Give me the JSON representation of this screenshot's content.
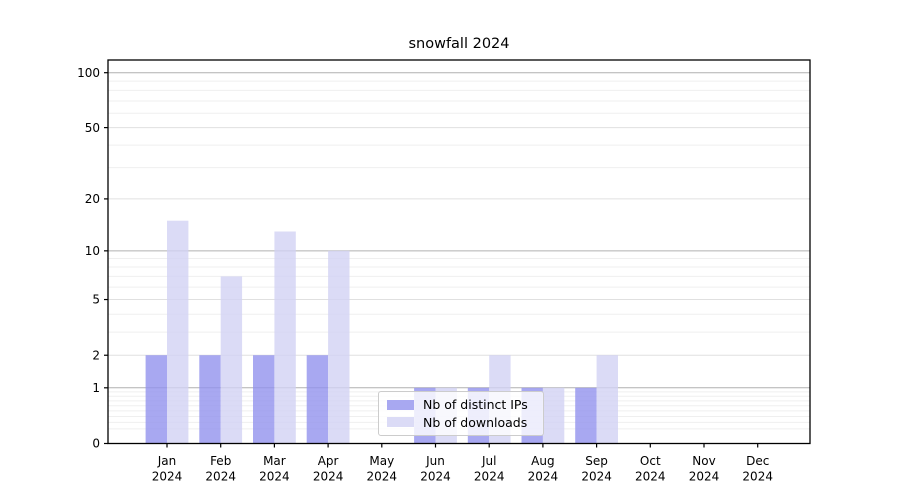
{
  "figure": {
    "background_color": "#ffffff"
  },
  "chart_data": {
    "type": "bar",
    "title": "snowfall 2024",
    "categories": [
      "Jan 2024",
      "Feb 2024",
      "Mar 2024",
      "Apr 2024",
      "May 2024",
      "Jun 2024",
      "Jul 2024",
      "Aug 2024",
      "Sep 2024",
      "Oct 2024",
      "Nov 2024",
      "Dec 2024"
    ],
    "series": [
      {
        "name": "Nb of distinct IPs",
        "color": "rgba(146,146,238,0.8)",
        "legend_color": "#a8a8f1",
        "values": [
          2,
          2,
          2,
          2,
          0,
          1,
          1,
          1,
          1,
          0,
          0,
          0
        ]
      },
      {
        "name": "Nb of downloads",
        "color": "rgba(210,210,244,0.8)",
        "legend_color": "#dbdbf6",
        "values": [
          15,
          7,
          13,
          10,
          0,
          1,
          2,
          1,
          2,
          0,
          0,
          0
        ]
      }
    ],
    "y_axis": {
      "scale": "log1p",
      "tick_labels": [
        "0",
        "1",
        "2",
        "5",
        "10",
        "20",
        "50",
        "100"
      ],
      "ticks": [
        0,
        1,
        2,
        5,
        10,
        20,
        50,
        100
      ],
      "minor_ticks": [
        0.2,
        0.3,
        0.4,
        0.5,
        0.6,
        0.7,
        0.8,
        0.9,
        3,
        4,
        6,
        7,
        8,
        9,
        30,
        40,
        60,
        70,
        80,
        90
      ],
      "ylim": [
        0,
        116
      ]
    },
    "grid": true,
    "grid_color_major": "#b0b0b0",
    "grid_color_labeled": "#e0e0e0",
    "grid_color_minor": "#efefef",
    "legend_position": "lower-center"
  }
}
